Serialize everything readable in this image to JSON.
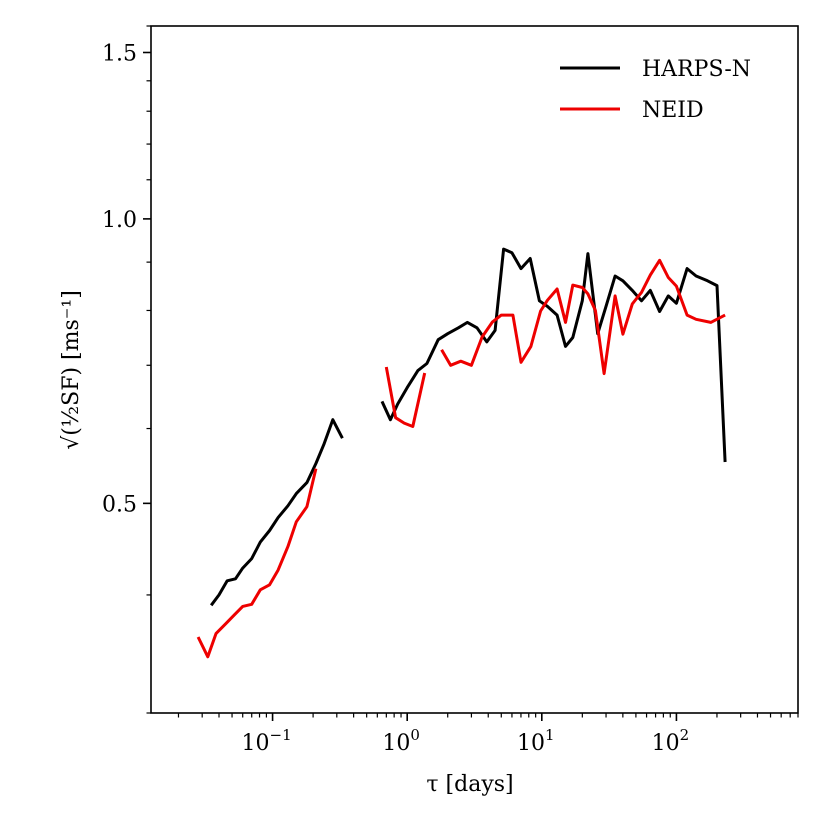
{
  "chart_data": {
    "type": "line",
    "xscale": "log",
    "yscale": "log",
    "xlim": [
      0.0125,
      800
    ],
    "ylim": [
      0.3,
      1.6
    ],
    "xlabel": "τ [days]",
    "ylabel": "√(½SF) [ms⁻¹]",
    "x_ticks": [
      {
        "value": 0.1,
        "base": "10",
        "exp": "−1"
      },
      {
        "value": 1,
        "base": "10",
        "exp": "0"
      },
      {
        "value": 10,
        "base": "10",
        "exp": "1"
      },
      {
        "value": 100,
        "base": "10",
        "exp": "2"
      }
    ],
    "y_ticks": [
      {
        "value": 0.5,
        "label": "0.5"
      },
      {
        "value": 1.0,
        "label": "1.0"
      },
      {
        "value": 1.5,
        "label": "1.5"
      }
    ],
    "legend": {
      "position": "top-right",
      "entries": [
        "HARPS-N",
        "NEID"
      ]
    },
    "grid": false,
    "series": [
      {
        "name": "HARPS-N",
        "color": "#000000",
        "segments": [
          [
            [
              0.035,
              0.39
            ],
            [
              0.04,
              0.4
            ],
            [
              0.046,
              0.414
            ],
            [
              0.053,
              0.416
            ],
            [
              0.06,
              0.427
            ],
            [
              0.07,
              0.437
            ],
            [
              0.081,
              0.455
            ],
            [
              0.095,
              0.468
            ],
            [
              0.11,
              0.483
            ],
            [
              0.13,
              0.497
            ],
            [
              0.15,
              0.512
            ],
            [
              0.18,
              0.526
            ],
            [
              0.21,
              0.551
            ],
            [
              0.24,
              0.577
            ],
            [
              0.28,
              0.613
            ],
            [
              0.33,
              0.586
            ]
          ],
          [
            [
              0.65,
              0.641
            ],
            [
              0.75,
              0.613
            ],
            [
              0.85,
              0.637
            ],
            [
              1.0,
              0.663
            ],
            [
              1.2,
              0.691
            ],
            [
              1.4,
              0.703
            ],
            [
              1.7,
              0.745
            ],
            [
              2.0,
              0.756
            ],
            [
              2.4,
              0.767
            ],
            [
              2.8,
              0.777
            ],
            [
              3.3,
              0.767
            ],
            [
              3.9,
              0.741
            ],
            [
              4.5,
              0.762
            ],
            [
              5.2,
              0.929
            ],
            [
              6.0,
              0.921
            ],
            [
              7.0,
              0.886
            ],
            [
              8.2,
              0.908
            ],
            [
              9.6,
              0.819
            ],
            [
              11,
              0.808
            ],
            [
              13,
              0.791
            ],
            [
              15,
              0.733
            ],
            [
              17,
              0.749
            ],
            [
              20,
              0.819
            ],
            [
              22,
              0.919
            ],
            [
              26,
              0.756
            ],
            [
              30,
              0.808
            ],
            [
              35,
              0.87
            ],
            [
              40,
              0.86
            ],
            [
              47,
              0.84
            ],
            [
              55,
              0.819
            ],
            [
              64,
              0.84
            ],
            [
              75,
              0.798
            ],
            [
              87,
              0.829
            ],
            [
              100,
              0.814
            ],
            [
              120,
              0.886
            ],
            [
              140,
              0.87
            ],
            [
              170,
              0.86
            ],
            [
              200,
              0.85
            ],
            [
              230,
              0.553
            ]
          ]
        ]
      },
      {
        "name": "NEID",
        "color": "#ee0000",
        "segments": [
          [
            [
              0.028,
              0.361
            ],
            [
              0.033,
              0.344
            ],
            [
              0.038,
              0.364
            ],
            [
              0.045,
              0.373
            ],
            [
              0.052,
              0.381
            ],
            [
              0.06,
              0.389
            ],
            [
              0.07,
              0.391
            ],
            [
              0.081,
              0.405
            ],
            [
              0.095,
              0.41
            ],
            [
              0.11,
              0.425
            ],
            [
              0.13,
              0.45
            ],
            [
              0.15,
              0.478
            ],
            [
              0.18,
              0.496
            ],
            [
              0.21,
              0.544
            ]
          ],
          [
            [
              0.7,
              0.697
            ],
            [
              0.82,
              0.616
            ],
            [
              0.95,
              0.608
            ],
            [
              1.1,
              0.603
            ],
            [
              1.35,
              0.687
            ]
          ],
          [
            [
              1.8,
              0.727
            ],
            [
              2.1,
              0.7
            ],
            [
              2.5,
              0.707
            ],
            [
              3.0,
              0.7
            ],
            [
              3.6,
              0.75
            ],
            [
              4.3,
              0.778
            ],
            [
              5.0,
              0.791
            ],
            [
              6.1,
              0.791
            ],
            [
              7.0,
              0.705
            ],
            [
              8.3,
              0.733
            ],
            [
              9.8,
              0.799
            ],
            [
              11,
              0.82
            ],
            [
              13,
              0.843
            ],
            [
              15,
              0.777
            ],
            [
              17,
              0.851
            ],
            [
              20,
              0.846
            ],
            [
              22,
              0.833
            ],
            [
              25,
              0.8
            ],
            [
              29,
              0.686
            ],
            [
              35,
              0.829
            ],
            [
              40,
              0.755
            ],
            [
              47,
              0.813
            ],
            [
              55,
              0.836
            ],
            [
              64,
              0.872
            ],
            [
              75,
              0.904
            ],
            [
              87,
              0.867
            ],
            [
              100,
              0.849
            ],
            [
              120,
              0.791
            ],
            [
              140,
              0.783
            ],
            [
              180,
              0.777
            ],
            [
              230,
              0.791
            ]
          ]
        ]
      }
    ]
  }
}
